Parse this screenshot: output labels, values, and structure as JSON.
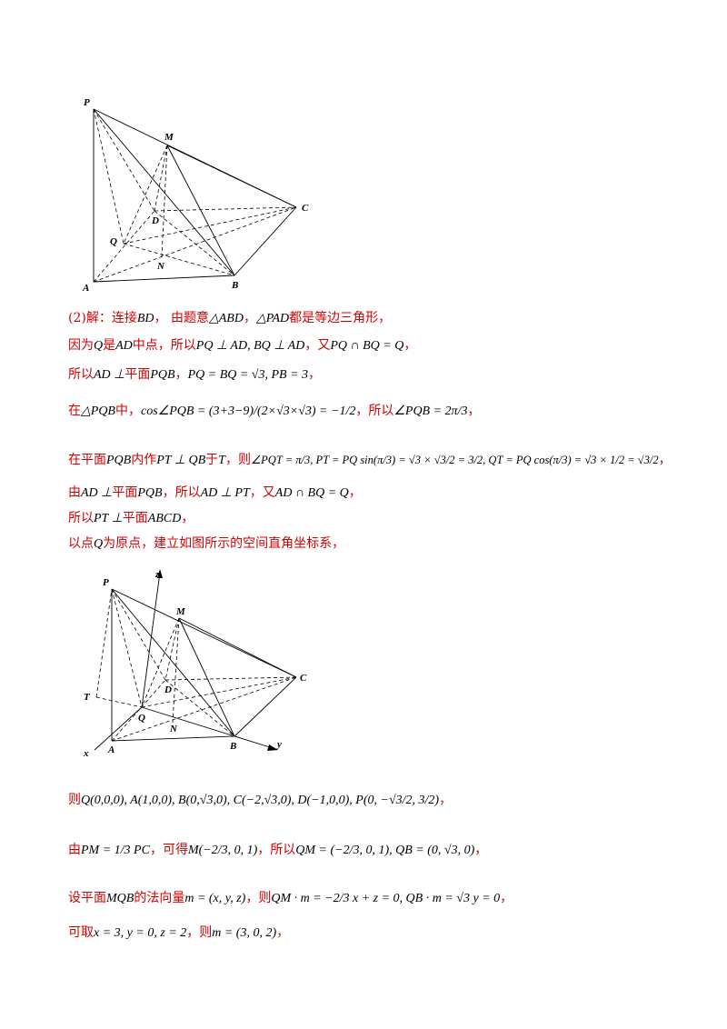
{
  "figure1": {
    "labels": {
      "P": "P",
      "M": "M",
      "C": "C",
      "D": "D",
      "Q": "Q",
      "N": "N",
      "A": "A",
      "B": "B"
    }
  },
  "figure2": {
    "labels": {
      "P": "P",
      "z": "z",
      "M": "M",
      "C": "C",
      "D": "D",
      "T": "T",
      "Q": "Q",
      "N": "N",
      "A": "A",
      "B": "B",
      "x": "x",
      "y": "y"
    }
  },
  "solution": {
    "l1_a": "(2)解：连接",
    "l1_m1": "BD",
    "l1_b": "，  由题意",
    "l1_m2": "△ABD",
    "l1_c": "，",
    "l1_m3": "△PAD",
    "l1_d": "都是等边三角形，",
    "l2_a": "因为",
    "l2_m1": "Q",
    "l2_b": "是",
    "l2_m2": "AD",
    "l2_c": "中点，所以",
    "l2_m3": "PQ ⊥ AD, BQ ⊥ AD",
    "l2_d": "，又",
    "l2_m4": "PQ ∩ BQ = Q",
    "l2_e": "，",
    "l3_a": "所以",
    "l3_m1": "AD ⊥",
    "l3_b": "平面",
    "l3_m2": "PQB",
    "l3_c": "，",
    "l3_m3": "PQ = BQ = √3, PB = 3",
    "l3_d": "，",
    "l4_a": "在",
    "l4_m1": "△PQB",
    "l4_b": "中，",
    "l4_m2": "cos∠PQB = (3+3−9)/(2×√3×√3) = −1/2",
    "l4_c": "，所以",
    "l4_m3": "∠PQB = 2π/3",
    "l4_d": "，",
    "l5_a": "在平面",
    "l5_m1": "PQB",
    "l5_b": "内作",
    "l5_m2": "PT ⊥ QB",
    "l5_c": "于",
    "l5_m3": "T",
    "l5_d": "，则",
    "l5_m4": "∠PQT = π/3, PT = PQ sin(π/3) = √3 × √3/2 = 3/2, QT = PQ cos(π/3) = √3 × 1/2 = √3/2",
    "l5_e": "，",
    "l6_a": "由",
    "l6_m1": "AD ⊥",
    "l6_b": "平面",
    "l6_m2": "PQB",
    "l6_c": "，所以",
    "l6_m3": "AD ⊥ PT",
    "l6_d": "，又",
    "l6_m4": "AD ∩ BQ = Q",
    "l6_e": "，",
    "l7_a": "所以",
    "l7_m1": "PT ⊥",
    "l7_b": "平面",
    "l7_m2": "ABCD",
    "l7_c": "，",
    "l8_a": "以点",
    "l8_m1": "Q",
    "l8_b": "为原点，建立如图所示的空间直角坐标系，",
    "l9_a": "则",
    "l9_m1": "Q(0,0,0), A(1,0,0), B(0,√3,0), C(−2,√3,0), D(−1,0,0), P(0, −√3/2, 3/2)",
    "l9_b": "，",
    "l10_a": "由",
    "l10_m1": "PM = 1/3 PC",
    "l10_b": "，可得",
    "l10_m2": "M(−2/3, 0, 1)",
    "l10_c": "，所以",
    "l10_m3": "QM = (−2/3, 0, 1), QB = (0, √3, 0)",
    "l10_d": "，",
    "l11_a": "设平面",
    "l11_m1": "MQB",
    "l11_b": "的法向量",
    "l11_m2": "m = (x, y, z)",
    "l11_c": "，则",
    "l11_m3": "QM · m = −2/3 x + z = 0, QB · m = √3 y = 0",
    "l11_d": "，",
    "l12_a": "可取",
    "l12_m1": "x = 3, y = 0, z = 2",
    "l12_b": "，则",
    "l12_m2": "m = (3, 0, 2)",
    "l12_c": "，"
  }
}
